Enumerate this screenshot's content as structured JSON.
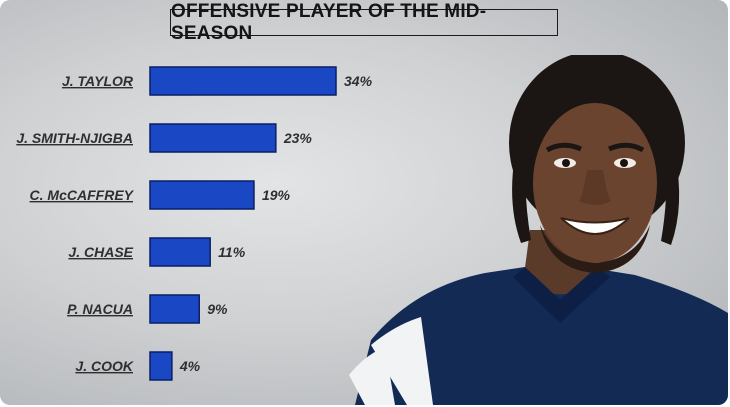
{
  "title": "OFFENSIVE PLAYER OF THE MID-SEASON",
  "colors": {
    "bar_fill": "#1a47c4",
    "bar_stroke": "#0a1f66",
    "text": "#2f2f2f"
  },
  "chart_data": {
    "type": "bar",
    "orientation": "horizontal",
    "title": "OFFENSIVE PLAYER OF THE MID-SEASON",
    "categories": [
      "J. TAYLOR",
      "J. SMITH-NJIGBA",
      "C. McCAFFREY",
      "J. CHASE",
      "P. NACUA",
      "J. COOK"
    ],
    "values": [
      34,
      23,
      19,
      11,
      9,
      4
    ],
    "value_labels": [
      "34%",
      "23%",
      "19%",
      "11%",
      "9%",
      "4%"
    ],
    "unit": "%",
    "xlim": [
      0,
      34
    ],
    "grid": false,
    "legend": "none"
  }
}
